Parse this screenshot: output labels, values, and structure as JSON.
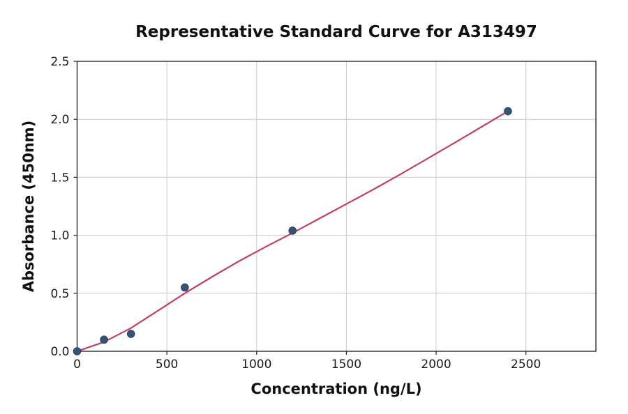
{
  "chart_data": {
    "type": "scatter",
    "title": "Representative Standard Curve for A313497",
    "xlabel": "Concentration (ng/L)",
    "ylabel": "Absorbance (450nm)",
    "xlim": [
      0,
      2890
    ],
    "ylim": [
      0,
      2.5
    ],
    "x_ticks": [
      0,
      500,
      1000,
      1500,
      2000,
      2500
    ],
    "x_tick_labels": [
      "0",
      "500",
      "1000",
      "1500",
      "2000",
      "2500"
    ],
    "y_ticks": [
      0,
      0.5,
      1.0,
      1.5,
      2.0,
      2.5
    ],
    "y_tick_labels": [
      "0.0",
      "0.5",
      "1.0",
      "1.5",
      "2.0",
      "2.5"
    ],
    "grid": true,
    "legend_position": "none",
    "series": [
      {
        "name": "fit-line",
        "kind": "line",
        "color": "#bc4069",
        "points": [
          [
            0,
            0
          ],
          [
            150,
            0.08
          ],
          [
            300,
            0.2
          ],
          [
            450,
            0.35
          ],
          [
            600,
            0.5
          ],
          [
            750,
            0.64
          ],
          [
            900,
            0.775
          ],
          [
            1050,
            0.9
          ],
          [
            1200,
            1.02
          ],
          [
            1350,
            1.145
          ],
          [
            1500,
            1.27
          ],
          [
            1650,
            1.395
          ],
          [
            1800,
            1.525
          ],
          [
            1950,
            1.66
          ],
          [
            2100,
            1.795
          ],
          [
            2250,
            1.932
          ],
          [
            2400,
            2.07
          ]
        ]
      },
      {
        "name": "standard-points",
        "kind": "scatter",
        "color": "#35537a",
        "edge_color": "#2a3f5f",
        "points": [
          [
            0,
            0
          ],
          [
            150,
            0.1
          ],
          [
            300,
            0.15
          ],
          [
            600,
            0.55
          ],
          [
            1200,
            1.04
          ],
          [
            2400,
            2.07
          ]
        ]
      }
    ],
    "colors": {
      "grid": "#c9c9c9",
      "spine": "#2a2a2a",
      "background": "#ffffff",
      "text": "#111111"
    }
  }
}
